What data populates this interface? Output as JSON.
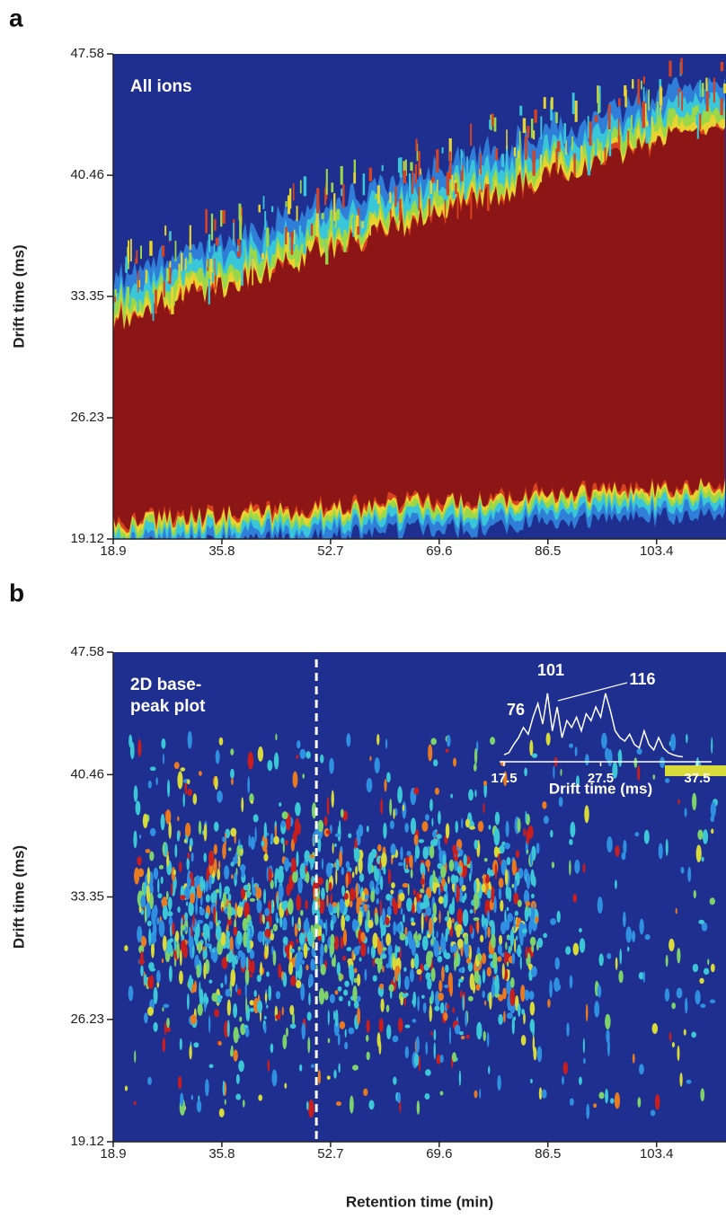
{
  "chart_data": [
    {
      "type": "heatmap",
      "panel": "a",
      "annotation": "All ions",
      "ylabel": "Drift time (ms)",
      "xlim": [
        18.9,
        114.2
      ],
      "xticks": [
        18.9,
        35.8,
        52.7,
        69.6,
        86.5,
        103.4
      ],
      "ylim": [
        19.12,
        47.58
      ],
      "yticks": [
        19.12,
        26.23,
        33.35,
        40.46,
        47.58
      ]
    },
    {
      "type": "heatmap",
      "panel": "b",
      "annotation": "2D base-\npeak plot",
      "ylabel": "Drift time (ms)",
      "xlabel": "Retention time (min)",
      "xlim": [
        18.9,
        114.2
      ],
      "xticks": [
        18.9,
        35.8,
        52.7,
        69.6,
        86.5,
        103.4
      ],
      "ylim": [
        19.12,
        47.58
      ],
      "yticks": [
        19.12,
        26.23,
        33.35,
        40.46,
        47.58
      ],
      "marker_x": 50.5,
      "inset": {
        "type": "line",
        "xlabel": "Drift time (ms)",
        "xlim": [
          17.5,
          37.5
        ],
        "xticks": [
          17.5,
          27.5,
          37.5
        ],
        "ylim": [
          0,
          100
        ],
        "color": "#ffffff",
        "peak_labels": [
          "76",
          "101",
          "116"
        ],
        "x": [
          17.5,
          18,
          18.5,
          19,
          19.5,
          20,
          20.5,
          21,
          21.5,
          22,
          22.5,
          23,
          23.5,
          24,
          24.5,
          25,
          25.5,
          26,
          26.5,
          27,
          27.5,
          28,
          28.5,
          29,
          29.5,
          30,
          30.5,
          31,
          31.5,
          32,
          32.5,
          33,
          33.5,
          34,
          34.5,
          35,
          35.5,
          36
        ],
        "values": [
          5,
          8,
          20,
          30,
          45,
          35,
          60,
          80,
          50,
          95,
          40,
          75,
          30,
          55,
          45,
          60,
          40,
          65,
          55,
          75,
          60,
          95,
          70,
          40,
          30,
          25,
          35,
          20,
          15,
          40,
          20,
          12,
          30,
          15,
          8,
          5,
          3,
          2
        ]
      }
    }
  ]
}
